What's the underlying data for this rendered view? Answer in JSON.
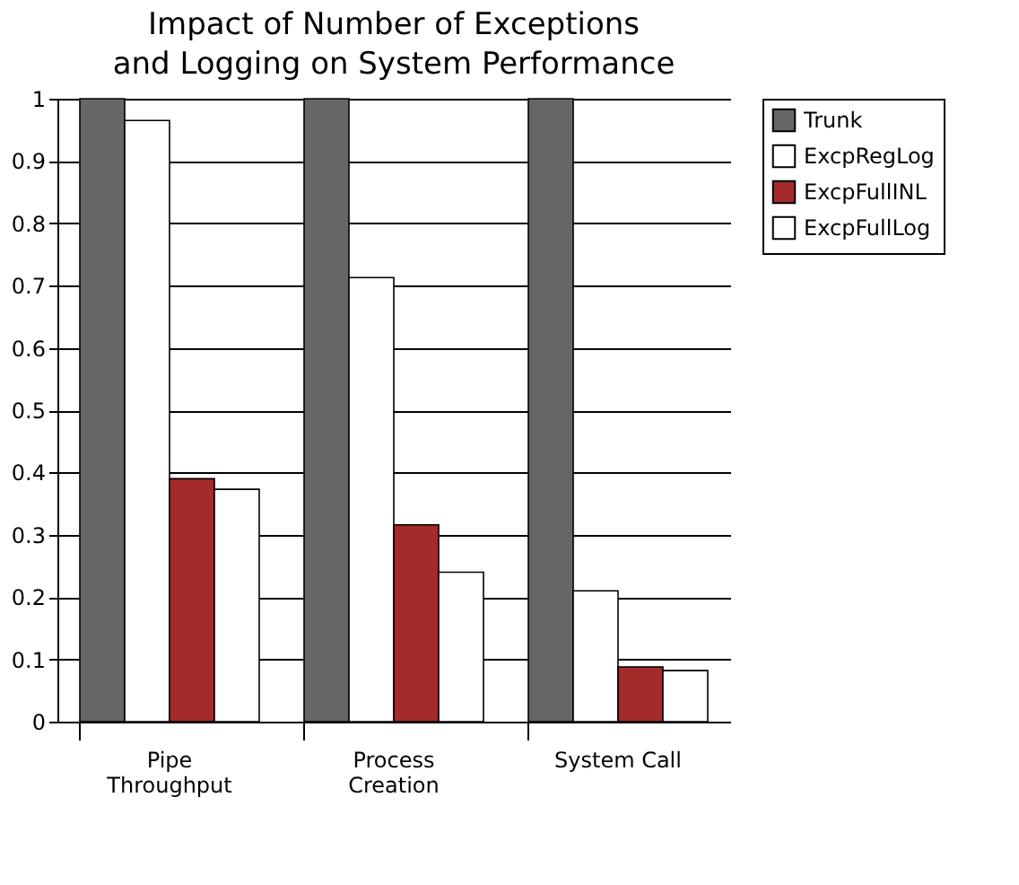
{
  "chart_data": {
    "type": "bar",
    "title": "Impact of Number of Exceptions\nand Logging on System Performance",
    "categories": [
      "Pipe Throughput",
      "Process Creation",
      "System Call"
    ],
    "series": [
      {
        "name": "Trunk",
        "color": "#666666",
        "values": [
          1,
          1,
          1
        ]
      },
      {
        "name": "ExcpRegLog",
        "color": "#ffffff",
        "values": [
          0.965,
          0.713,
          0.21
        ]
      },
      {
        "name": "ExcpFullINL",
        "color": "#a52a2a",
        "values": [
          0.39,
          0.316,
          0.088
        ]
      },
      {
        "name": "ExcpFullLog",
        "color": "#ffffff",
        "values": [
          0.373,
          0.24,
          0.082
        ]
      }
    ],
    "ylim": [
      0,
      1
    ],
    "yticks": [
      0,
      0.1,
      0.2,
      0.3,
      0.4,
      0.5,
      0.6,
      0.7,
      0.8,
      0.9,
      1
    ],
    "grid": "y",
    "legend": "right"
  }
}
